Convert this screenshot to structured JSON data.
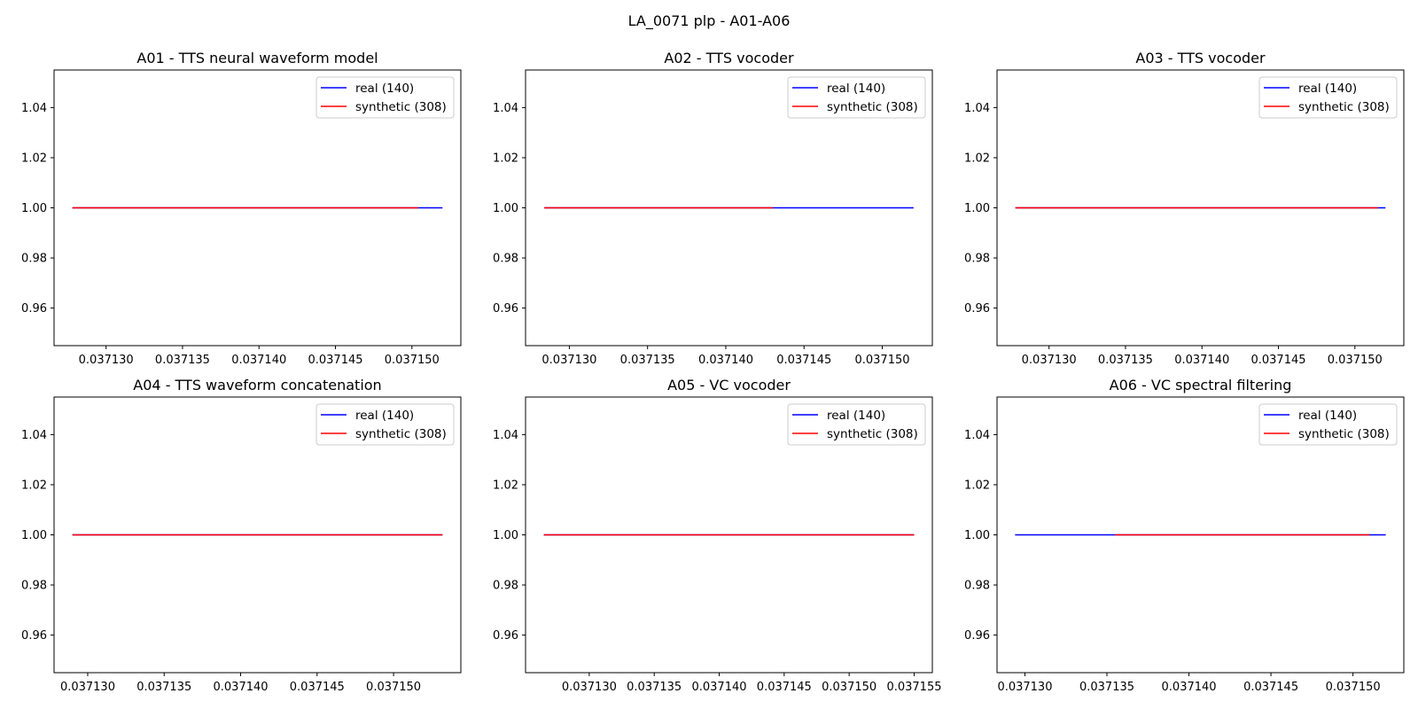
{
  "figure_title": "LA_0071 plp - A01-A06",
  "colors": {
    "real": "#0000ff",
    "synthetic": "#ff0000",
    "axes": "#000000"
  },
  "chart_data": [
    {
      "type": "line",
      "title": "A01 - TTS neural waveform model",
      "xlabel": "",
      "ylabel": "",
      "xlim": [
        0.0371266,
        0.0371532
      ],
      "ylim": [
        0.945,
        1.055
      ],
      "xticks": [
        0.03713,
        0.037135,
        0.03714,
        0.037145,
        0.03715
      ],
      "xtick_labels": [
        "0.037130",
        "0.037135",
        "0.037140",
        "0.037145",
        "0.037150"
      ],
      "yticks": [
        0.96,
        0.98,
        1.0,
        1.02,
        1.04
      ],
      "ytick_labels": [
        "0.96",
        "0.98",
        "1.00",
        "1.02",
        "1.04"
      ],
      "legend": "upper right",
      "series": [
        {
          "name": "real (140)",
          "color": "#0000ff",
          "x": [
            0.0371278,
            0.037152
          ],
          "y": [
            1.0,
            1.0
          ]
        },
        {
          "name": "synthetic (308)",
          "color": "#ff0000",
          "x": [
            0.0371278,
            0.0371504
          ],
          "y": [
            1.0,
            1.0
          ]
        }
      ]
    },
    {
      "type": "line",
      "title": "A02 - TTS vocoder",
      "xlabel": "",
      "ylabel": "",
      "xlim": [
        0.0371272,
        0.0371532
      ],
      "ylim": [
        0.945,
        1.055
      ],
      "xticks": [
        0.03713,
        0.037135,
        0.03714,
        0.037145,
        0.03715
      ],
      "xtick_labels": [
        "0.037130",
        "0.037135",
        "0.037140",
        "0.037145",
        "0.037150"
      ],
      "yticks": [
        0.96,
        0.98,
        1.0,
        1.02,
        1.04
      ],
      "ytick_labels": [
        "0.96",
        "0.98",
        "1.00",
        "1.02",
        "1.04"
      ],
      "legend": "upper right",
      "series": [
        {
          "name": "real (140)",
          "color": "#0000ff",
          "x": [
            0.0371284,
            0.037152
          ],
          "y": [
            1.0,
            1.0
          ]
        },
        {
          "name": "synthetic (308)",
          "color": "#ff0000",
          "x": [
            0.0371284,
            0.037143
          ],
          "y": [
            1.0,
            1.0
          ]
        }
      ]
    },
    {
      "type": "line",
      "title": "A03 - TTS vocoder",
      "xlabel": "",
      "ylabel": "",
      "xlim": [
        0.0371266,
        0.0371532
      ],
      "ylim": [
        0.945,
        1.055
      ],
      "xticks": [
        0.03713,
        0.037135,
        0.03714,
        0.037145,
        0.03715
      ],
      "xtick_labels": [
        "0.037130",
        "0.037135",
        "0.037140",
        "0.037145",
        "0.037150"
      ],
      "yticks": [
        0.96,
        0.98,
        1.0,
        1.02,
        1.04
      ],
      "ytick_labels": [
        "0.96",
        "0.98",
        "1.00",
        "1.02",
        "1.04"
      ],
      "legend": "upper right",
      "series": [
        {
          "name": "real (140)",
          "color": "#0000ff",
          "x": [
            0.0371278,
            0.037152
          ],
          "y": [
            1.0,
            1.0
          ]
        },
        {
          "name": "synthetic (308)",
          "color": "#ff0000",
          "x": [
            0.0371278,
            0.0371515
          ],
          "y": [
            1.0,
            1.0
          ]
        }
      ]
    },
    {
      "type": "line",
      "title": "A04 - TTS waveform concatenation",
      "xlabel": "",
      "ylabel": "",
      "xlim": [
        0.0371278,
        0.0371544
      ],
      "ylim": [
        0.945,
        1.055
      ],
      "xticks": [
        0.03713,
        0.037135,
        0.03714,
        0.037145,
        0.03715
      ],
      "xtick_labels": [
        "0.037130",
        "0.037135",
        "0.037140",
        "0.037145",
        "0.037150"
      ],
      "yticks": [
        0.96,
        0.98,
        1.0,
        1.02,
        1.04
      ],
      "ytick_labels": [
        "0.96",
        "0.98",
        "1.00",
        "1.02",
        "1.04"
      ],
      "legend": "upper right",
      "series": [
        {
          "name": "real (140)",
          "color": "#0000ff",
          "x": [
            0.037129,
            0.0371532
          ],
          "y": [
            1.0,
            1.0
          ]
        },
        {
          "name": "synthetic (308)",
          "color": "#ff0000",
          "x": [
            0.037129,
            0.0371532
          ],
          "y": [
            1.0,
            1.0
          ]
        }
      ]
    },
    {
      "type": "line",
      "title": "A05 - VC vocoder",
      "xlabel": "",
      "ylabel": "",
      "xlim": [
        0.0371251,
        0.0371564
      ],
      "ylim": [
        0.945,
        1.055
      ],
      "xticks": [
        0.03713,
        0.037135,
        0.03714,
        0.037145,
        0.03715,
        0.037155
      ],
      "xtick_labels": [
        "0.037130",
        "0.037135",
        "0.037140",
        "0.037145",
        "0.037150",
        "0.037155"
      ],
      "yticks": [
        0.96,
        0.98,
        1.0,
        1.02,
        1.04
      ],
      "ytick_labels": [
        "0.96",
        "0.98",
        "1.00",
        "1.02",
        "1.04"
      ],
      "legend": "upper right",
      "series": [
        {
          "name": "real (140)",
          "color": "#0000ff",
          "x": [
            0.0371265,
            0.037155
          ],
          "y": [
            1.0,
            1.0
          ]
        },
        {
          "name": "synthetic (308)",
          "color": "#ff0000",
          "x": [
            0.0371265,
            0.037155
          ],
          "y": [
            1.0,
            1.0
          ]
        }
      ]
    },
    {
      "type": "line",
      "title": "A06 - VC spectral filtering",
      "xlabel": "",
      "ylabel": "",
      "xlim": [
        0.0371283,
        0.0371531
      ],
      "ylim": [
        0.945,
        1.055
      ],
      "xticks": [
        0.03713,
        0.037135,
        0.03714,
        0.037145,
        0.03715
      ],
      "xtick_labels": [
        "0.037130",
        "0.037135",
        "0.037140",
        "0.037145",
        "0.037150"
      ],
      "yticks": [
        0.96,
        0.98,
        1.0,
        1.02,
        1.04
      ],
      "ytick_labels": [
        "0.96",
        "0.98",
        "1.00",
        "1.02",
        "1.04"
      ],
      "legend": "upper right",
      "series": [
        {
          "name": "real (140)",
          "color": "#0000ff",
          "x": [
            0.0371294,
            0.037152
          ],
          "y": [
            1.0,
            1.0
          ]
        },
        {
          "name": "synthetic (308)",
          "color": "#ff0000",
          "x": [
            0.0371355,
            0.037151
          ],
          "y": [
            1.0,
            1.0
          ]
        }
      ]
    }
  ]
}
